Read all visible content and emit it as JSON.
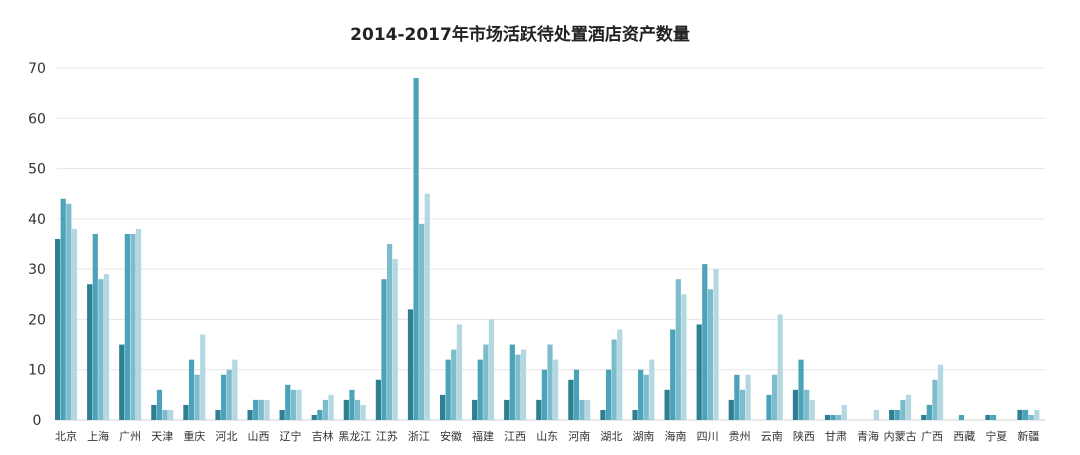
{
  "chart_data": {
    "type": "bar",
    "title": "2014-2017年市场活跃待处置酒店资产数量",
    "xlabel": "",
    "ylabel": "",
    "ylim": [
      0,
      70
    ],
    "yticks": [
      0,
      10,
      20,
      30,
      40,
      50,
      60,
      70
    ],
    "grid": true,
    "legend": "none",
    "categories": [
      "北京",
      "上海",
      "广州",
      "天津",
      "重庆",
      "河北",
      "山西",
      "辽宁",
      "吉林",
      "黑龙江",
      "江苏",
      "浙江",
      "安徽",
      "福建",
      "江西",
      "山东",
      "河南",
      "湖北",
      "湖南",
      "海南",
      "四川",
      "贵州",
      "云南",
      "陕西",
      "甘肃",
      "青海",
      "内蒙古",
      "广西",
      "西藏",
      "宁夏",
      "新疆"
    ],
    "series": [
      {
        "color": "#2e7f94",
        "values": [
          36,
          27,
          15,
          3,
          3,
          2,
          2,
          2,
          1,
          4,
          8,
          22,
          5,
          4,
          4,
          4,
          8,
          2,
          2,
          6,
          19,
          4,
          0,
          6,
          1,
          0,
          2,
          1,
          0,
          1,
          2
        ]
      },
      {
        "color": "#4aa3b8",
        "values": [
          44,
          37,
          37,
          6,
          12,
          9,
          4,
          7,
          2,
          6,
          28,
          68,
          12,
          12,
          15,
          10,
          10,
          10,
          10,
          18,
          31,
          9,
          5,
          12,
          1,
          0,
          2,
          3,
          1,
          1,
          2
        ]
      },
      {
        "color": "#7cbccc",
        "values": [
          43,
          28,
          37,
          2,
          9,
          10,
          4,
          6,
          4,
          4,
          35,
          39,
          14,
          15,
          13,
          15,
          4,
          16,
          9,
          28,
          26,
          6,
          9,
          6,
          1,
          0,
          4,
          8,
          0,
          0,
          1
        ]
      },
      {
        "color": "#b3d8e2",
        "values": [
          38,
          29,
          38,
          2,
          17,
          12,
          4,
          6,
          5,
          3,
          32,
          45,
          19,
          20,
          14,
          12,
          4,
          18,
          12,
          25,
          30,
          9,
          21,
          4,
          3,
          2,
          5,
          11,
          0,
          0,
          2
        ]
      }
    ]
  }
}
